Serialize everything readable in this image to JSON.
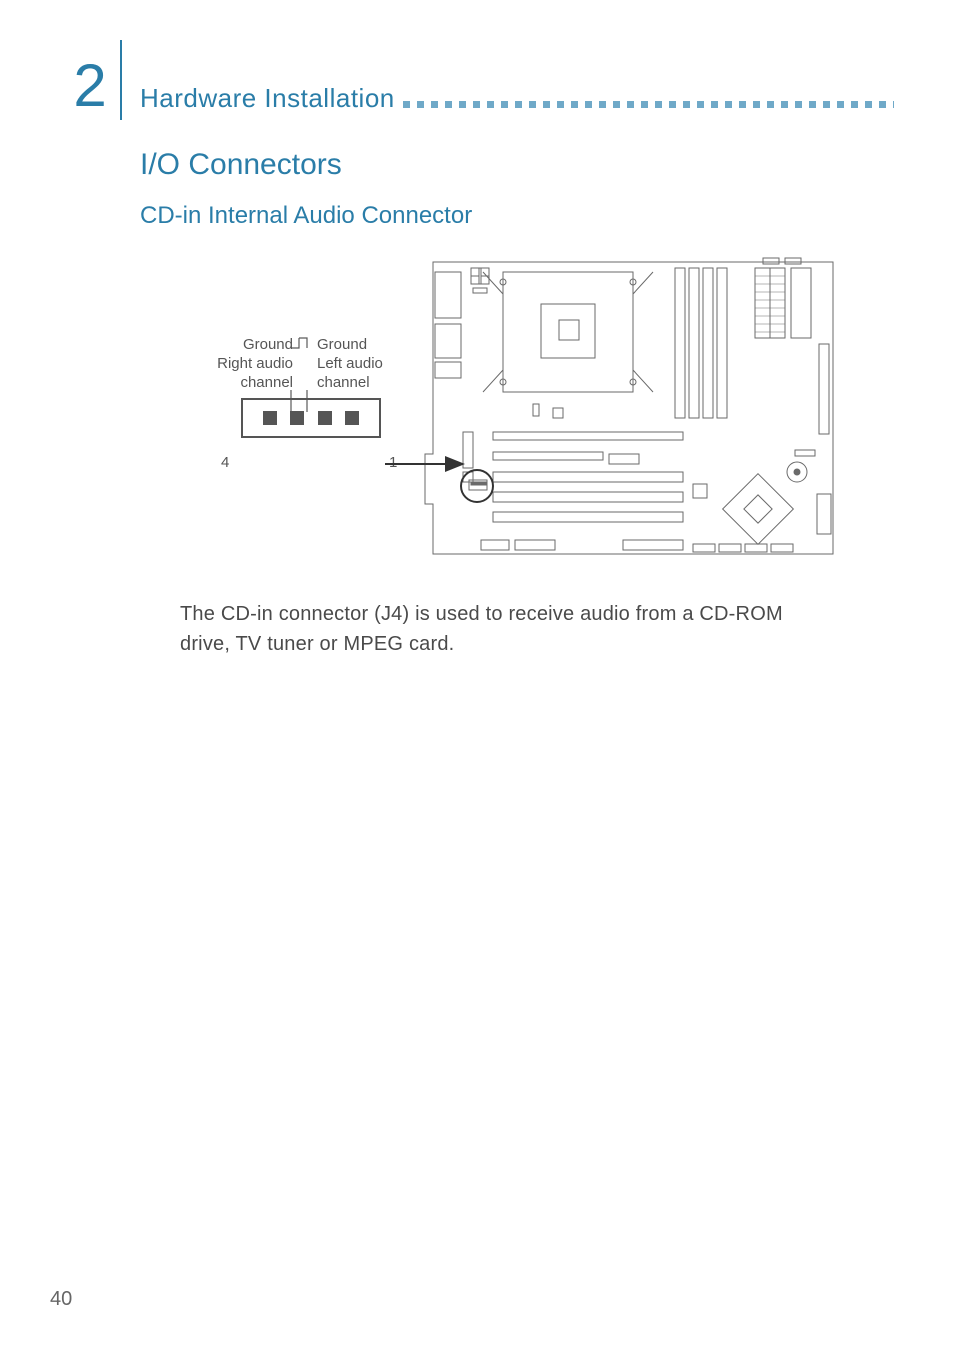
{
  "colors": {
    "accent": "#2a7da8",
    "chapter_num": "#2a7da8",
    "chapter_border": "#2a7da8",
    "section": "#2a7da8",
    "subsection": "#2a7da8",
    "body_text": "#4a4a4a",
    "label_text": "#5a5a5a",
    "board_stroke": "#6a6a6a",
    "pin_fill": "#5a5a5a",
    "dot": "#6fa9c8",
    "page_bg": "#ffffff"
  },
  "chapter": {
    "number": "2",
    "title": "Hardware Installation"
  },
  "section": {
    "title": "I/O Connectors"
  },
  "subsection": {
    "title": "CD-in Internal Audio Connector"
  },
  "pinout": {
    "left_top": "Ground",
    "right_top": "Ground",
    "left_mid": "Right audio",
    "left_bot": "channel",
    "right_mid": "Left audio",
    "right_bot": "channel",
    "pin_left_num": "4",
    "pin_right_num": "1",
    "pin_count": 4
  },
  "body": {
    "text": "The CD-in connector (J4) is used to receive audio from a CD-ROM drive, TV tuner or MPEG card."
  },
  "page_number": "40"
}
